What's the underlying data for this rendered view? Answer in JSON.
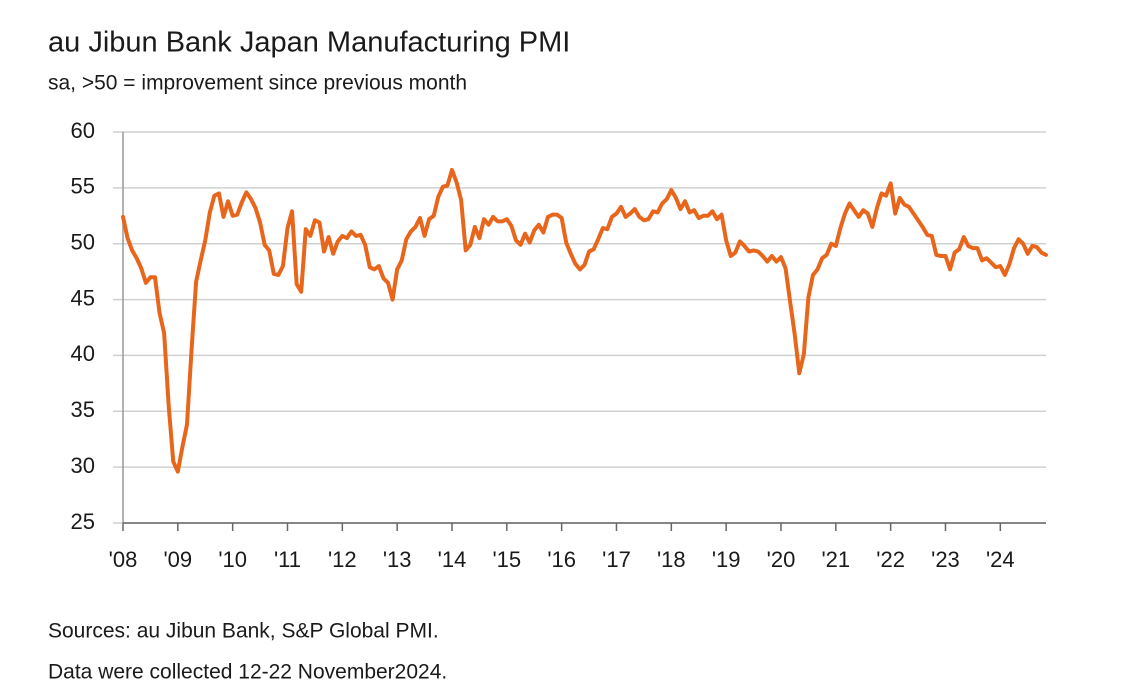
{
  "chart_data": {
    "type": "line",
    "title": "au Jibun Bank Japan Manufacturing PMI",
    "subtitle": "sa, >50 = improvement since previous month",
    "notes": [
      "Sources: au Jibun Bank, S&P Global PMI.",
      "Data were collected 12-22 November2024."
    ],
    "categories": [
      "'08",
      null,
      null,
      null,
      null,
      null,
      null,
      null,
      null,
      null,
      null,
      null,
      "'09",
      null,
      null,
      null,
      null,
      null,
      null,
      null,
      null,
      null,
      null,
      null,
      "'10",
      null,
      null,
      null,
      null,
      null,
      null,
      null,
      null,
      null,
      null,
      null,
      "'11",
      null,
      null,
      null,
      null,
      null,
      null,
      null,
      null,
      null,
      null,
      null,
      "'12",
      null,
      null,
      null,
      null,
      null,
      null,
      null,
      null,
      null,
      null,
      null,
      "'13",
      null,
      null,
      null,
      null,
      null,
      null,
      null,
      null,
      null,
      null,
      null,
      "'14",
      null,
      null,
      null,
      null,
      null,
      null,
      null,
      null,
      null,
      null,
      null,
      "'15",
      null,
      null,
      null,
      null,
      null,
      null,
      null,
      null,
      null,
      null,
      null,
      "'16",
      null,
      null,
      null,
      null,
      null,
      null,
      null,
      null,
      null,
      null,
      null,
      "'17",
      null,
      null,
      null,
      null,
      null,
      null,
      null,
      null,
      null,
      null,
      null,
      "'18",
      null,
      null,
      null,
      null,
      null,
      null,
      null,
      null,
      null,
      null,
      null,
      "'19",
      null,
      null,
      null,
      null,
      null,
      null,
      null,
      null,
      null,
      null,
      null,
      "'20",
      null,
      null,
      null,
      null,
      null,
      null,
      null,
      null,
      null,
      null,
      null,
      "'21",
      null,
      null,
      null,
      null,
      null,
      null,
      null,
      null,
      null,
      null,
      null,
      "'22",
      null,
      null,
      null,
      null,
      null,
      null,
      null,
      null,
      null,
      null,
      null,
      "'23",
      null,
      null,
      null,
      null,
      null,
      null,
      null,
      null,
      null,
      null,
      null,
      "'24",
      null,
      null,
      null,
      null,
      null,
      null,
      null,
      null,
      null,
      null
    ],
    "series": [
      {
        "color": "#e8661c",
        "values": [
          52.4,
          50.5,
          49.4,
          48.7,
          47.8,
          46.5,
          47.0,
          47.0,
          43.8,
          42.0,
          35.5,
          30.5,
          29.6,
          31.8,
          33.8,
          40.5,
          46.6,
          48.5,
          50.3,
          52.8,
          54.3,
          54.5,
          52.4,
          53.8,
          52.5,
          52.6,
          53.7,
          54.6,
          54.0,
          53.2,
          51.9,
          49.9,
          49.4,
          47.3,
          47.2,
          48.0,
          51.4,
          52.9,
          46.4,
          45.7,
          51.3,
          50.7,
          52.1,
          51.9,
          49.3,
          50.6,
          49.1,
          50.2,
          50.7,
          50.5,
          51.1,
          50.7,
          50.8,
          49.9,
          47.9,
          47.7,
          48.0,
          46.9,
          46.5,
          45.0,
          47.7,
          48.5,
          50.4,
          51.1,
          51.5,
          52.3,
          50.7,
          52.2,
          52.5,
          54.2,
          55.1,
          55.2,
          56.6,
          55.5,
          53.9,
          49.4,
          49.9,
          51.5,
          50.5,
          52.2,
          51.7,
          52.4,
          52.0,
          52.0,
          52.2,
          51.6,
          50.3,
          49.9,
          50.9,
          50.1,
          51.2,
          51.7,
          51.0,
          52.4,
          52.6,
          52.6,
          52.3,
          50.1,
          49.1,
          48.2,
          47.7,
          48.1,
          49.3,
          49.5,
          50.4,
          51.4,
          51.3,
          52.4,
          52.7,
          53.3,
          52.4,
          52.7,
          53.1,
          52.4,
          52.1,
          52.2,
          52.9,
          52.8,
          53.6,
          54.0,
          54.8,
          54.1,
          53.1,
          53.8,
          52.8,
          53.0,
          52.3,
          52.5,
          52.5,
          52.9,
          52.2,
          52.6,
          50.3,
          48.9,
          49.2,
          50.2,
          49.8,
          49.3,
          49.4,
          49.3,
          48.9,
          48.4,
          48.9,
          48.4,
          48.8,
          47.8,
          44.8,
          41.9,
          38.4,
          40.1,
          45.2,
          47.2,
          47.7,
          48.7,
          49.0,
          50.0,
          49.8,
          51.4,
          52.7,
          53.6,
          53.0,
          52.4,
          53.0,
          52.7,
          51.5,
          53.2,
          54.5,
          54.3,
          55.4,
          52.7,
          54.1,
          53.5,
          53.3,
          52.7,
          52.1,
          51.5,
          50.8,
          50.7,
          49.0,
          48.9,
          48.9,
          47.7,
          49.2,
          49.5,
          50.6,
          49.8,
          49.6,
          49.6,
          48.5,
          48.7,
          48.3,
          47.9,
          48.0,
          47.2,
          48.2,
          49.6,
          50.4,
          50.0,
          49.1,
          49.8,
          49.7,
          49.2,
          49.0
        ]
      }
    ],
    "ylim": [
      25,
      60
    ],
    "yticks": [
      25,
      30,
      35,
      40,
      45,
      50,
      55,
      60
    ],
    "grid": true
  }
}
